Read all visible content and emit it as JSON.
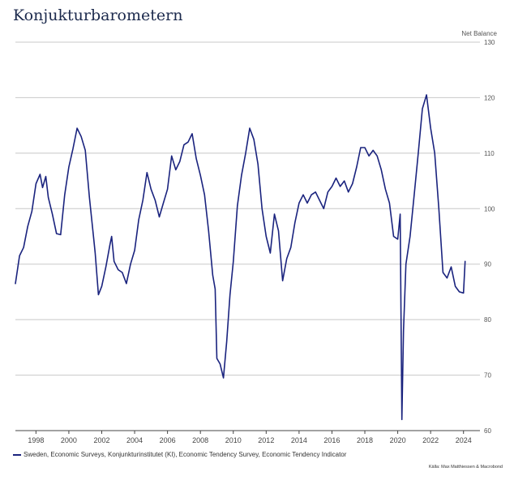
{
  "title": "Konjukturbarometern",
  "source": "Källa: Max Matthiessen & Macrobond",
  "colors": {
    "line": "#1a237e",
    "grid": "#c8c8c8",
    "axis": "#444444"
  },
  "chart_data": {
    "type": "line",
    "title": "Konjukturbarometern",
    "ylabel": "Net Balance",
    "ylim": [
      60,
      130
    ],
    "xlim": [
      1996.75,
      2025.0
    ],
    "yticks": [
      60,
      70,
      80,
      90,
      100,
      110,
      120,
      130
    ],
    "xticks": [
      "1998",
      "2000",
      "2002",
      "2004",
      "2006",
      "2008",
      "2010",
      "2012",
      "2014",
      "2016",
      "2018",
      "2020",
      "2022",
      "2024"
    ],
    "grid": true,
    "legend_position": "bottom-left",
    "series": [
      {
        "name": "Sweden, Economic Surveys, Konjunkturinstitutet (KI), Economic Tendency Survey, Economic Tendency Indicator",
        "x": [
          1996.75,
          1997.0,
          1997.25,
          1997.5,
          1997.75,
          1998.0,
          1998.25,
          1998.4,
          1998.6,
          1998.75,
          1999.0,
          1999.25,
          1999.5,
          1999.75,
          2000.0,
          2000.25,
          2000.5,
          2000.75,
          2001.0,
          2001.25,
          2001.5,
          2001.6,
          2001.8,
          2002.0,
          2002.25,
          2002.5,
          2002.6,
          2002.75,
          2003.0,
          2003.25,
          2003.5,
          2003.75,
          2004.0,
          2004.25,
          2004.5,
          2004.75,
          2005.0,
          2005.25,
          2005.5,
          2005.75,
          2006.0,
          2006.25,
          2006.5,
          2006.75,
          2007.0,
          2007.25,
          2007.5,
          2007.75,
          2008.0,
          2008.25,
          2008.5,
          2008.75,
          2008.9,
          2009.0,
          2009.2,
          2009.4,
          2009.6,
          2009.8,
          2010.0,
          2010.25,
          2010.5,
          2010.75,
          2011.0,
          2011.25,
          2011.5,
          2011.75,
          2012.0,
          2012.25,
          2012.5,
          2012.75,
          2013.0,
          2013.25,
          2013.5,
          2013.75,
          2014.0,
          2014.25,
          2014.5,
          2014.75,
          2015.0,
          2015.25,
          2015.5,
          2015.75,
          2016.0,
          2016.25,
          2016.5,
          2016.75,
          2017.0,
          2017.25,
          2017.5,
          2017.75,
          2018.0,
          2018.25,
          2018.5,
          2018.75,
          2019.0,
          2019.25,
          2019.5,
          2019.75,
          2020.0,
          2020.15,
          2020.25,
          2020.35,
          2020.5,
          2020.75,
          2021.0,
          2021.25,
          2021.5,
          2021.75,
          2022.0,
          2022.25,
          2022.5,
          2022.75,
          2023.0,
          2023.25,
          2023.5,
          2023.75,
          2024.0,
          2024.1
        ],
        "values": [
          86.5,
          91.5,
          93.0,
          96.8,
          99.5,
          104.5,
          106.2,
          103.8,
          105.8,
          102.0,
          99.0,
          95.5,
          95.3,
          102.5,
          107.5,
          110.8,
          114.5,
          113.0,
          110.5,
          102.0,
          95.0,
          92.0,
          84.5,
          86.0,
          89.5,
          93.5,
          95.0,
          90.5,
          89.0,
          88.5,
          86.5,
          90.0,
          92.5,
          98.0,
          101.5,
          106.5,
          103.5,
          101.5,
          98.5,
          101.0,
          103.5,
          109.5,
          107.0,
          108.5,
          111.5,
          112.0,
          113.5,
          109.0,
          106.0,
          102.5,
          96.0,
          88.0,
          85.5,
          73.0,
          72.0,
          69.5,
          76.0,
          84.5,
          90.5,
          100.5,
          106.0,
          110.0,
          114.5,
          112.5,
          108.0,
          100.0,
          95.0,
          92.0,
          99.0,
          96.0,
          87.0,
          91.0,
          93.0,
          97.5,
          101.0,
          102.5,
          101.0,
          102.5,
          103.0,
          101.5,
          100.0,
          103.0,
          104.0,
          105.5,
          104.0,
          105.0,
          103.0,
          104.5,
          107.5,
          111.0,
          111.0,
          109.5,
          110.5,
          109.5,
          107.0,
          103.5,
          101.0,
          95.0,
          94.5,
          99.0,
          62.0,
          78.0,
          90.0,
          95.0,
          102.5,
          110.0,
          118.0,
          120.5,
          114.5,
          110.0,
          100.0,
          88.5,
          87.5,
          89.5,
          86.0,
          85.0,
          84.8,
          90.5
        ]
      }
    ]
  }
}
